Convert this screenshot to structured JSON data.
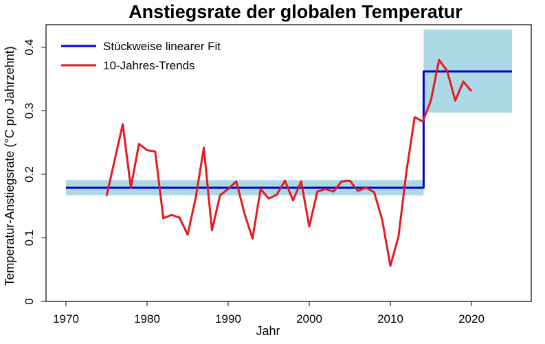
{
  "chart_data": {
    "type": "line",
    "title": "Anstiegsrate der globalen Temperatur",
    "xlabel": "Jahr",
    "ylabel": "Temperatur-Anstiegsrate (°C pro Jahrzehnt)",
    "xlim": [
      1970,
      2025
    ],
    "ylim": [
      0,
      0.42
    ],
    "x_ticks": [
      1970,
      1980,
      1990,
      2000,
      2010,
      2020
    ],
    "x_tick_labels": [
      "1970",
      "1980",
      "1990",
      "2000",
      "2010",
      "2020"
    ],
    "y_ticks": [
      0,
      0.1,
      0.2,
      0.3,
      0.4
    ],
    "y_tick_labels": [
      "0",
      "0.1",
      "0.2",
      "0.3",
      "0.4"
    ],
    "grid": false,
    "legend_position": "top-left",
    "series": [
      {
        "name": "Stückweise linearer Fit",
        "color": "#0000cd",
        "x": [
          1970,
          2014.1,
          2014.1,
          2025
        ],
        "y": [
          0.179,
          0.179,
          0.362,
          0.362
        ]
      },
      {
        "name": "10-Jahres-Trends",
        "color": "#e41a1c",
        "x": [
          1975,
          1976,
          1977,
          1978,
          1979,
          1980,
          1981,
          1982,
          1983,
          1984,
          1985,
          1986,
          1987,
          1988,
          1989,
          1990,
          1991,
          1992,
          1993,
          1994,
          1995,
          1996,
          1997,
          1998,
          1999,
          2000,
          2001,
          2002,
          2003,
          2004,
          2005,
          2006,
          2007,
          2008,
          2009,
          2010,
          2011,
          2012,
          2013,
          2014,
          2015,
          2016,
          2017,
          2018,
          2019,
          2020
        ],
        "y": [
          0.166,
          0.222,
          0.279,
          0.179,
          0.248,
          0.238,
          0.236,
          0.131,
          0.136,
          0.132,
          0.105,
          0.163,
          0.242,
          0.112,
          0.167,
          0.177,
          0.189,
          0.139,
          0.099,
          0.177,
          0.162,
          0.168,
          0.19,
          0.159,
          0.189,
          0.118,
          0.173,
          0.177,
          0.173,
          0.189,
          0.19,
          0.174,
          0.179,
          0.172,
          0.128,
          0.056,
          0.102,
          0.206,
          0.29,
          0.283,
          0.316,
          0.38,
          0.363,
          0.316,
          0.346,
          0.331
        ]
      }
    ],
    "confidence_bands": [
      {
        "color": "#add8e6",
        "x": [
          1970,
          2014.1
        ],
        "y": [
          0.167,
          0.191
        ]
      },
      {
        "color": "#add8e6",
        "x": [
          2014.1,
          2025
        ],
        "y": [
          0.297,
          0.428
        ]
      }
    ]
  }
}
